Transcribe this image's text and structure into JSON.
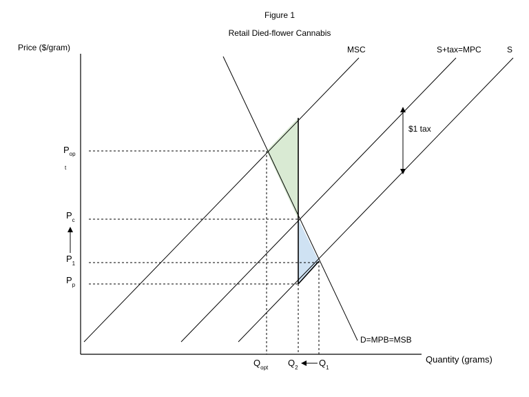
{
  "figure": {
    "number": "Figure 1",
    "title": "Retail Died-flower Cannabis"
  },
  "axes": {
    "y_label": "Price ($/gram)",
    "x_label": "Quantity (grams)"
  },
  "curves": {
    "msc": "MSC",
    "mpc": "S+tax=MPC",
    "s": "S",
    "demand": "D=MPB=MSB"
  },
  "annotations": {
    "tax": "$1 tax"
  },
  "price_levels": {
    "p_opt": {
      "main": "P",
      "sub": "op",
      "below": "t"
    },
    "p_c": {
      "main": "P",
      "sub": "c"
    },
    "p_1": {
      "main": "P",
      "sub": "1"
    },
    "p_p": {
      "main": "P",
      "sub": "p"
    }
  },
  "quantity_levels": {
    "q_opt": {
      "main": "Q",
      "sub": "opt"
    },
    "q_2": {
      "main": "Q",
      "sub": "2"
    },
    "q_1": {
      "main": "Q",
      "sub": "1"
    }
  },
  "colors": {
    "deadweight_green": "#d9ead3",
    "deadweight_blue": "#cfe2f3",
    "line": "#000000"
  }
}
